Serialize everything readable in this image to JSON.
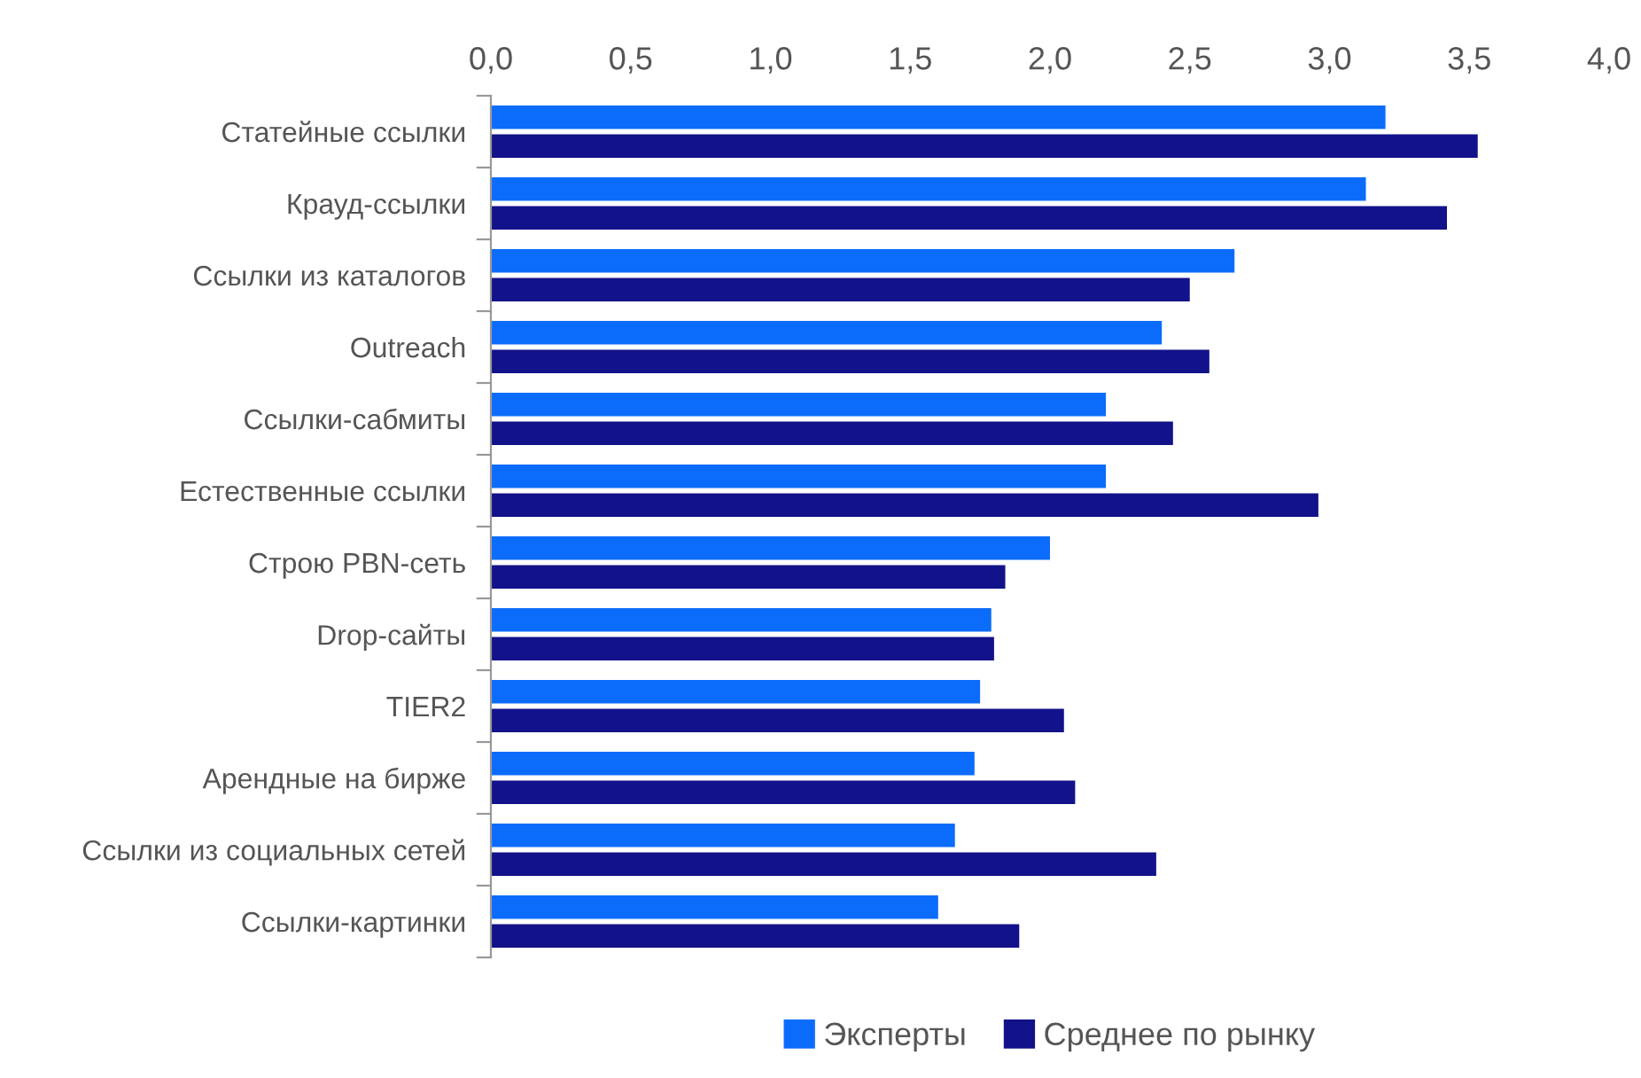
{
  "chart_data": {
    "type": "bar",
    "orientation": "horizontal",
    "categories": [
      "Статейные ссылки",
      "Крауд-ссылки",
      "Ссылки из каталогов",
      "Outreach",
      "Ссылки-сабмиты",
      "Естественные ссылки",
      "Строю PBN-сеть",
      "Drop-сайты",
      "TIER2",
      "Арендные на бирже",
      "Ссылки из социальных сетей",
      "Ссылки-картинки"
    ],
    "series": [
      {
        "name": "Эксперты",
        "color": "#0b6cfb",
        "values": [
          3.2,
          3.13,
          2.66,
          2.4,
          2.2,
          2.2,
          2.0,
          1.79,
          1.75,
          1.73,
          1.66,
          1.6
        ]
      },
      {
        "name": "Среднее по рынку",
        "color": "#12128a",
        "values": [
          3.53,
          3.42,
          2.5,
          2.57,
          2.44,
          2.96,
          1.84,
          1.8,
          2.05,
          2.09,
          2.38,
          1.89
        ]
      }
    ],
    "xlim": [
      0,
      4
    ],
    "xticks": [
      {
        "value": 0,
        "label": "0,0"
      },
      {
        "value": 0.5,
        "label": "0,5"
      },
      {
        "value": 1,
        "label": "1,0"
      },
      {
        "value": 1.5,
        "label": "1,5"
      },
      {
        "value": 2,
        "label": "2,0"
      },
      {
        "value": 2.5,
        "label": "2,5"
      },
      {
        "value": 3,
        "label": "3,0"
      },
      {
        "value": 3.5,
        "label": "3,5"
      },
      {
        "value": 4,
        "label": "4,0"
      }
    ],
    "grid": false,
    "legend": "bottom"
  }
}
